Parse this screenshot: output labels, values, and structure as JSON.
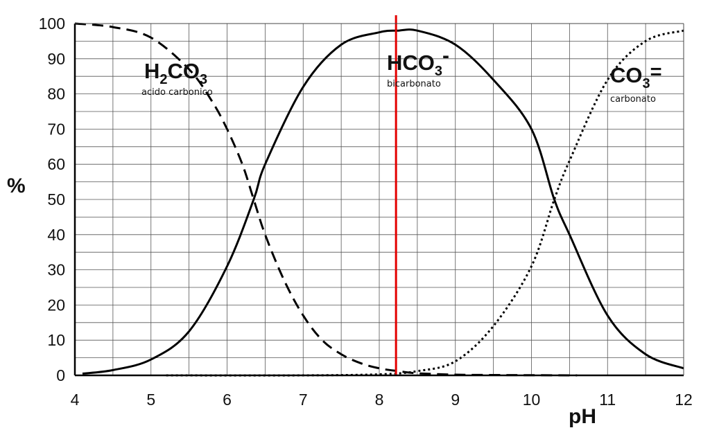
{
  "chart_data": {
    "type": "line",
    "title": "",
    "xlabel": "pH",
    "ylabel": "%",
    "xlim": [
      4,
      12
    ],
    "ylim": [
      0,
      100
    ],
    "grid": true,
    "x_ticks": [
      4,
      5,
      6,
      7,
      8,
      9,
      10,
      11,
      12
    ],
    "y_ticks": [
      0,
      10,
      20,
      30,
      40,
      50,
      60,
      70,
      80,
      90,
      100
    ],
    "x_tick_labels": [
      "4",
      "5",
      "6",
      "7",
      "8",
      "9",
      "10",
      "11",
      "12"
    ],
    "y_tick_labels": [
      "0",
      "10",
      "20",
      "30",
      "40",
      "50",
      "60",
      "70",
      "80",
      "90",
      "100"
    ],
    "series": [
      {
        "style": "dashed",
        "color": "#000000",
        "x": [
          4.0,
          4.5,
          5.0,
          5.5,
          5.8,
          6.0,
          6.2,
          6.35,
          6.5,
          6.75,
          7.0,
          7.25,
          7.5,
          7.75,
          8.0,
          8.25,
          8.5,
          9.0,
          9.5,
          10.0,
          10.6
        ],
        "y": [
          100,
          99,
          96,
          87,
          78,
          70,
          60,
          50,
          40,
          27,
          17,
          10,
          6,
          3.5,
          2,
          1.2,
          0.6,
          0.2,
          0.1,
          0.05,
          0
        ]
      },
      {
        "style": "solid",
        "color": "#000000",
        "x": [
          4.1,
          4.5,
          5.0,
          5.5,
          6.0,
          6.35,
          6.5,
          7.0,
          7.5,
          8.0,
          8.25,
          8.5,
          9.0,
          9.5,
          10.0,
          10.3,
          10.5,
          11.0,
          11.5,
          12.0
        ],
        "y": [
          0.5,
          1.5,
          4.5,
          12.5,
          31,
          50,
          60,
          82,
          94,
          97.5,
          98,
          98,
          94,
          84,
          70,
          50,
          40,
          17,
          6,
          2
        ]
      },
      {
        "style": "dotted",
        "color": "#000000",
        "x": [
          5.2,
          7.0,
          8.0,
          8.5,
          9.0,
          9.5,
          10.0,
          10.3,
          10.5,
          11.0,
          11.5,
          12.0
        ],
        "y": [
          0,
          0,
          0.3,
          1.2,
          4,
          14,
          31,
          50,
          61,
          84,
          95,
          98
        ]
      }
    ],
    "reference_line": {
      "x": 8.22,
      "color": "#e30000"
    },
    "annotations": [
      {
        "base": "H",
        "sub1": "2",
        "mid": "CO",
        "sub2": "3",
        "sup": "",
        "caption": "acido carbonico"
      },
      {
        "base": "HCO",
        "sub1": "3",
        "mid": "",
        "sub2": "",
        "sup": "-",
        "caption": "bicarbonato"
      },
      {
        "base": "CO",
        "sub1": "3",
        "mid": "",
        "sub2": "",
        "sup": "=",
        "caption": "carbonato"
      }
    ]
  }
}
